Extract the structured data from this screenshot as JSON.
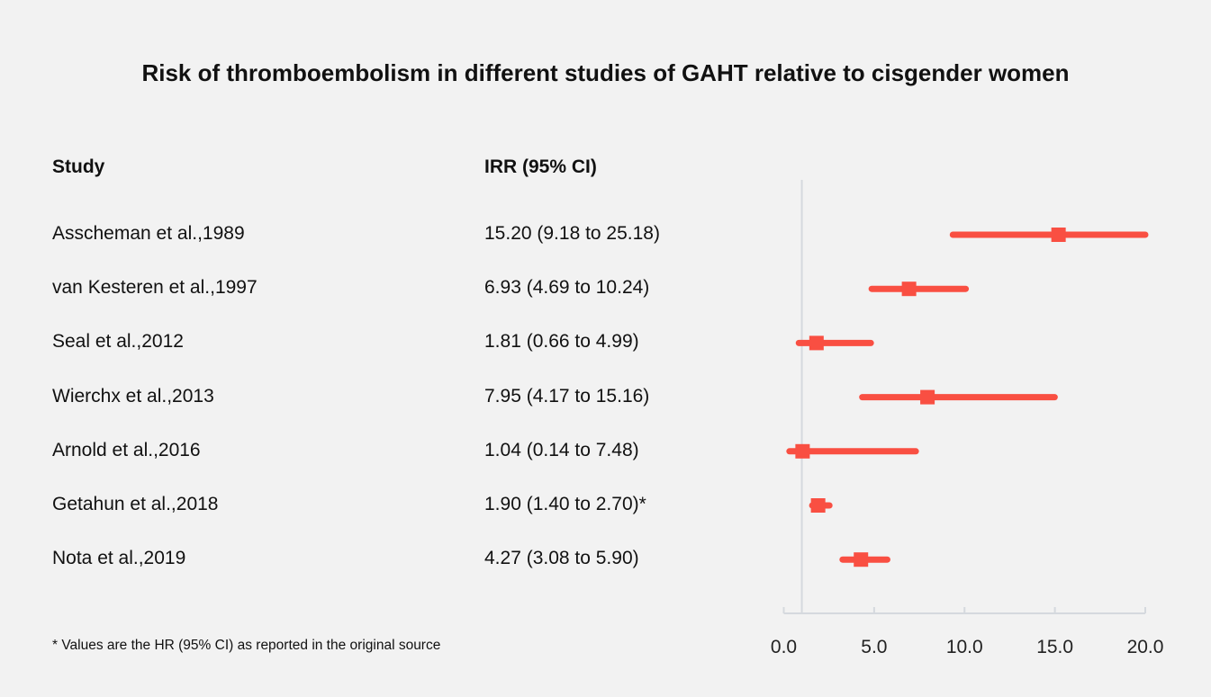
{
  "chart_data": {
    "type": "forest",
    "title": "Risk of thromboembolism in different studies of GAHT relative to cisgender women",
    "columns": {
      "study": "Study",
      "estimate": "IRR (95% CI)"
    },
    "rows": [
      {
        "study": "Asscheman et al.,1989",
        "label": "15.20 (9.18 to 25.18)",
        "value": 15.2,
        "lower": 9.18,
        "upper": 25.18
      },
      {
        "study": "van Kesteren et al.,1997",
        "label": "6.93 (4.69 to 10.24)",
        "value": 6.93,
        "lower": 4.69,
        "upper": 10.24
      },
      {
        "study": "Seal et al.,2012",
        "label": "1.81 (0.66 to 4.99)",
        "value": 1.81,
        "lower": 0.66,
        "upper": 4.99
      },
      {
        "study": "Wierchx et al.,2013",
        "label": "7.95 (4.17 to 15.16)",
        "value": 7.95,
        "lower": 4.17,
        "upper": 15.16
      },
      {
        "study": "Arnold et al.,2016",
        "label": "1.04 (0.14 to 7.48)",
        "value": 1.04,
        "lower": 0.14,
        "upper": 7.48
      },
      {
        "study": "Getahun et al.,2018",
        "label": "1.90 (1.40 to 2.70)*",
        "value": 1.9,
        "lower": 1.4,
        "upper": 2.7
      },
      {
        "study": "Nota et al.,2019",
        "label": "4.27 (3.08 to 5.90)",
        "value": 4.27,
        "lower": 3.08,
        "upper": 5.9
      }
    ],
    "xlim": [
      0,
      20
    ],
    "reference_line": 1,
    "x_ticks": [
      "0.0",
      "5.0",
      "10.0",
      "15.0",
      "20.0"
    ],
    "x_tick_values": [
      0,
      5,
      10,
      15,
      20
    ],
    "footnote": "* Values are the HR (95% CI) as reported in the original source",
    "colors": {
      "marker": "#f94f42",
      "axis": "#d5d9de",
      "background": "#f2f2f2"
    }
  }
}
